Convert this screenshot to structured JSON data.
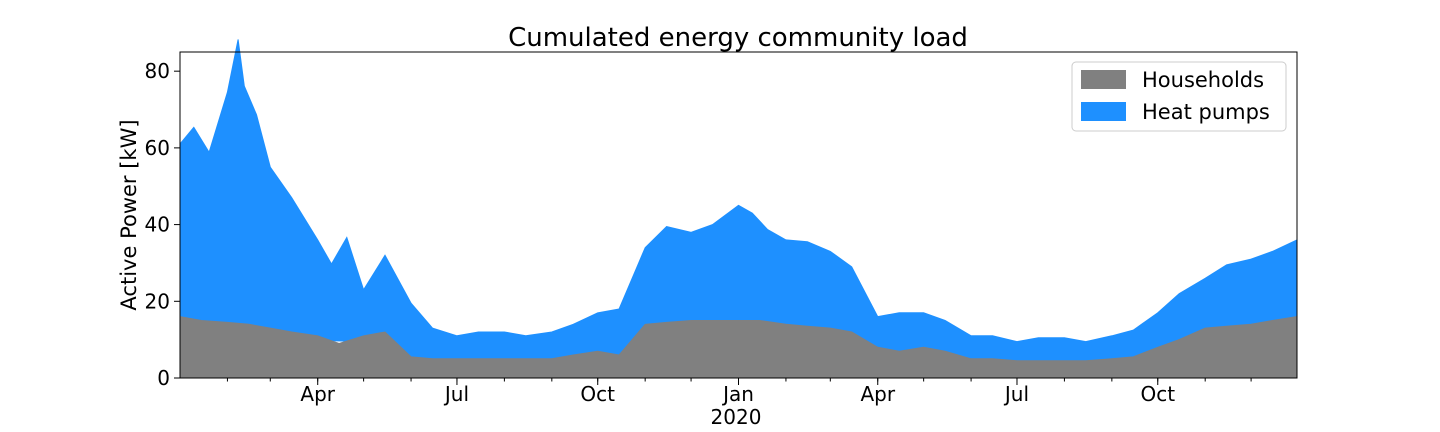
{
  "chart_data": {
    "type": "area",
    "stacked": true,
    "title": "Cumulated energy community load",
    "xlabel": "",
    "ylabel": "Active Power [kW]",
    "ylim": [
      0,
      85
    ],
    "yticks": [
      0,
      20,
      40,
      60,
      80
    ],
    "xlim": [
      "2019-01-01",
      "2020-12-31"
    ],
    "x_ticks": [
      {
        "date": "2019-04-01",
        "label": "Apr"
      },
      {
        "date": "2019-07-01",
        "label": "Jul"
      },
      {
        "date": "2019-10-01",
        "label": "Oct"
      },
      {
        "date": "2020-01-01",
        "label": "Jan"
      },
      {
        "date": "2020-04-01",
        "label": "Apr"
      },
      {
        "date": "2020-07-01",
        "label": "Jul"
      },
      {
        "date": "2020-10-01",
        "label": "Oct"
      }
    ],
    "x_secondary_label": "2020",
    "grid": false,
    "legend_position": "top-right",
    "series": [
      {
        "name": "Households",
        "color": "#808080",
        "points": [
          [
            "2019-01-01",
            16
          ],
          [
            "2019-01-15",
            15
          ],
          [
            "2019-02-01",
            14.5
          ],
          [
            "2019-02-15",
            14
          ],
          [
            "2019-03-01",
            13
          ],
          [
            "2019-03-15",
            12
          ],
          [
            "2019-04-01",
            11
          ],
          [
            "2019-04-15",
            9
          ],
          [
            "2019-05-01",
            11
          ],
          [
            "2019-05-15",
            12
          ],
          [
            "2019-06-01",
            5.5
          ],
          [
            "2019-06-15",
            5
          ],
          [
            "2019-07-01",
            5
          ],
          [
            "2019-07-15",
            5
          ],
          [
            "2019-08-01",
            5
          ],
          [
            "2019-08-15",
            5
          ],
          [
            "2019-09-01",
            5
          ],
          [
            "2019-09-15",
            6
          ],
          [
            "2019-10-01",
            7
          ],
          [
            "2019-10-15",
            6
          ],
          [
            "2019-11-01",
            14
          ],
          [
            "2019-11-15",
            14.5
          ],
          [
            "2019-12-01",
            15
          ],
          [
            "2019-12-15",
            15
          ],
          [
            "2020-01-01",
            15
          ],
          [
            "2020-01-15",
            15
          ],
          [
            "2020-02-01",
            14
          ],
          [
            "2020-02-15",
            13.5
          ],
          [
            "2020-03-01",
            13
          ],
          [
            "2020-03-15",
            12
          ],
          [
            "2020-04-01",
            8
          ],
          [
            "2020-04-15",
            7
          ],
          [
            "2020-05-01",
            8
          ],
          [
            "2020-05-15",
            7
          ],
          [
            "2020-06-01",
            5
          ],
          [
            "2020-06-15",
            5
          ],
          [
            "2020-07-01",
            4.5
          ],
          [
            "2020-07-15",
            4.5
          ],
          [
            "2020-08-01",
            4.5
          ],
          [
            "2020-08-15",
            4.5
          ],
          [
            "2020-09-01",
            5
          ],
          [
            "2020-09-15",
            5.5
          ],
          [
            "2020-10-01",
            8
          ],
          [
            "2020-10-15",
            10
          ],
          [
            "2020-11-01",
            13
          ],
          [
            "2020-11-15",
            13.5
          ],
          [
            "2020-12-01",
            14
          ],
          [
            "2020-12-15",
            15
          ],
          [
            "2020-12-31",
            16
          ]
        ]
      },
      {
        "name": "Heat pumps",
        "color": "#1e90ff",
        "points": [
          [
            "2019-01-01",
            45
          ],
          [
            "2019-01-10",
            50
          ],
          [
            "2019-01-20",
            44
          ],
          [
            "2019-02-01",
            60
          ],
          [
            "2019-02-08",
            74
          ],
          [
            "2019-02-12",
            62
          ],
          [
            "2019-02-20",
            55
          ],
          [
            "2019-03-01",
            42
          ],
          [
            "2019-03-15",
            35
          ],
          [
            "2019-04-01",
            25
          ],
          [
            "2019-04-10",
            20
          ],
          [
            "2019-04-20",
            27
          ],
          [
            "2019-05-01",
            12
          ],
          [
            "2019-05-15",
            20
          ],
          [
            "2019-06-01",
            14
          ],
          [
            "2019-06-15",
            8
          ],
          [
            "2019-07-01",
            6
          ],
          [
            "2019-07-15",
            7
          ],
          [
            "2019-08-01",
            7
          ],
          [
            "2019-08-15",
            6
          ],
          [
            "2019-09-01",
            7
          ],
          [
            "2019-09-15",
            8
          ],
          [
            "2019-10-01",
            10
          ],
          [
            "2019-10-15",
            12
          ],
          [
            "2019-11-01",
            20
          ],
          [
            "2019-11-15",
            25
          ],
          [
            "2019-12-01",
            23
          ],
          [
            "2019-12-15",
            25
          ],
          [
            "2020-01-01",
            30
          ],
          [
            "2020-01-10",
            28
          ],
          [
            "2020-01-20",
            24
          ],
          [
            "2020-02-01",
            22
          ],
          [
            "2020-02-15",
            22
          ],
          [
            "2020-03-01",
            20
          ],
          [
            "2020-03-15",
            17
          ],
          [
            "2020-04-01",
            8
          ],
          [
            "2020-04-15",
            10
          ],
          [
            "2020-05-01",
            9
          ],
          [
            "2020-05-15",
            8
          ],
          [
            "2020-06-01",
            6
          ],
          [
            "2020-06-15",
            6
          ],
          [
            "2020-07-01",
            5
          ],
          [
            "2020-07-15",
            6
          ],
          [
            "2020-08-01",
            6
          ],
          [
            "2020-08-15",
            5
          ],
          [
            "2020-09-01",
            6
          ],
          [
            "2020-09-15",
            7
          ],
          [
            "2020-10-01",
            9
          ],
          [
            "2020-10-15",
            12
          ],
          [
            "2020-11-01",
            13
          ],
          [
            "2020-11-15",
            16
          ],
          [
            "2020-12-01",
            17
          ],
          [
            "2020-12-15",
            18
          ],
          [
            "2020-12-31",
            20
          ]
        ]
      }
    ]
  }
}
